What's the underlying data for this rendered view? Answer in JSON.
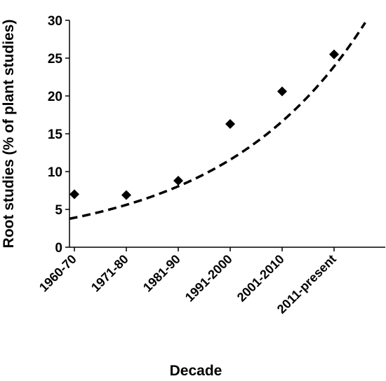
{
  "chart_data": {
    "type": "scatter",
    "title": "",
    "xlabel": "Decade",
    "ylabel": "Root studies (% of plant studies)",
    "categories": [
      "1960-70",
      "1971-80",
      "1981-90",
      "1991-2000",
      "2001-2010",
      "2011-present"
    ],
    "ylim": [
      0,
      30
    ],
    "yticks": [
      0,
      5,
      10,
      15,
      20,
      25,
      30
    ],
    "grid": false,
    "legend": "none",
    "series": [
      {
        "values": [
          7.0,
          6.9,
          8.8,
          16.3,
          20.6,
          25.5
        ],
        "marker": "diamond",
        "color": "#000000"
      }
    ],
    "trendline": {
      "type": "exponential",
      "style": "dashed",
      "color": "#000000",
      "start": 3.9,
      "growth": 1.437,
      "x_extent": [
        -0.1,
        5.6
      ]
    }
  }
}
